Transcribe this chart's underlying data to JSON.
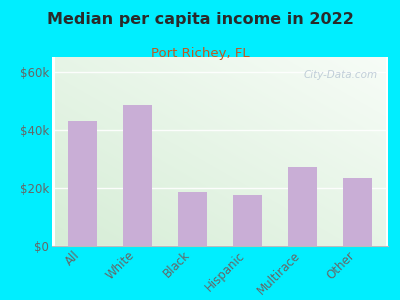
{
  "title": "Median per capita income in 2022",
  "subtitle": "Port Richey, FL",
  "categories": [
    "All",
    "White",
    "Black",
    "Hispanic",
    "Multirace",
    "Other"
  ],
  "values": [
    43000,
    48500,
    18500,
    17500,
    27000,
    23500
  ],
  "bar_color": "#c9aed6",
  "background_outer": "#00eeff",
  "title_color": "#2a2a2a",
  "subtitle_color": "#c05820",
  "tick_label_color": "#666666",
  "ylabel_ticks": [
    "$0",
    "$20k",
    "$40k",
    "$60k"
  ],
  "ylabel_values": [
    0,
    20000,
    40000,
    60000
  ],
  "ylim": [
    0,
    65000
  ],
  "watermark": "City-Data.com",
  "bg_gradient_left": "#d6edd6",
  "bg_gradient_right": "#f0f8f0",
  "bg_top": "#eaf5f0",
  "bg_bottom": "#daeeda"
}
